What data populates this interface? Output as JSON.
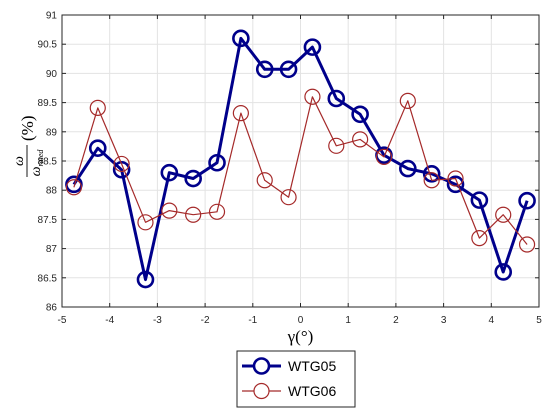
{
  "chart_data": {
    "type": "line",
    "xlabel": "γ(°)",
    "ylabel": {
      "numerator": "ω",
      "denominator": "ω",
      "denominator_subscript": "rated",
      "unit": "(%)"
    },
    "xlim": [
      -5,
      5
    ],
    "ylim": [
      86,
      91
    ],
    "xticks": [
      -5,
      -4,
      -3,
      -2,
      -1,
      0,
      1,
      2,
      3,
      4,
      5
    ],
    "yticks": [
      86,
      86.5,
      87,
      87.5,
      88,
      88.5,
      89,
      89.5,
      90,
      90.5,
      91
    ],
    "grid": true,
    "legend_position": "bottom-center",
    "x": [
      -4.75,
      -4.25,
      -3.75,
      -3.25,
      -2.75,
      -2.25,
      -1.75,
      -1.25,
      -0.75,
      -0.25,
      0.25,
      0.75,
      1.25,
      1.75,
      2.25,
      2.75,
      3.25,
      3.75,
      4.25,
      4.75
    ],
    "series": [
      {
        "name": "WTG05",
        "color": "#00008B",
        "values": [
          88.1,
          88.72,
          88.35,
          86.47,
          88.3,
          88.2,
          88.47,
          90.6,
          90.07,
          90.07,
          90.45,
          89.57,
          89.3,
          88.6,
          88.37,
          88.28,
          88.1,
          87.83,
          86.6,
          87.82
        ]
      },
      {
        "name": "WTG06",
        "color": "#A52A2A",
        "values": [
          88.05,
          89.41,
          88.45,
          87.45,
          87.65,
          87.58,
          87.63,
          89.32,
          88.17,
          87.88,
          89.6,
          88.76,
          88.87,
          88.57,
          89.53,
          88.17,
          88.2,
          87.18,
          87.58,
          87.07
        ]
      }
    ]
  }
}
